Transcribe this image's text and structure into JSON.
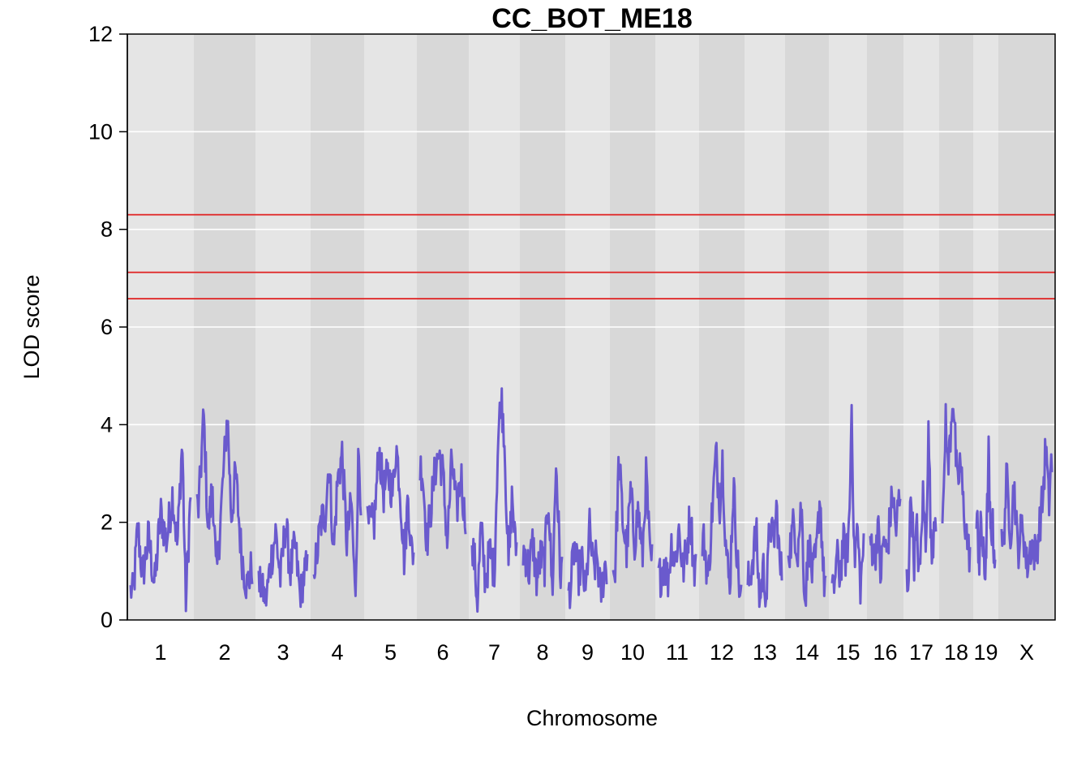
{
  "chart_data": {
    "type": "line",
    "title": "CC_BOT_ME18",
    "xlabel": "Chromosome",
    "ylabel": "LOD score",
    "ylim": [
      0,
      12
    ],
    "yticks": [
      0,
      2,
      4,
      6,
      8,
      10,
      12
    ],
    "grid": true,
    "line_color": "#6a5acd",
    "threshold_color": "#e02020",
    "thresholds": [
      8.3,
      7.12,
      6.58
    ],
    "chromosomes": [
      {
        "label": "1",
        "peaks": [
          [
            0.05,
            0.6
          ],
          [
            0.12,
            1.9
          ],
          [
            0.2,
            0.9
          ],
          [
            0.3,
            1.7
          ],
          [
            0.4,
            0.7
          ],
          [
            0.5,
            2.2
          ],
          [
            0.6,
            1.6
          ],
          [
            0.7,
            2.6
          ],
          [
            0.78,
            1.5
          ],
          [
            0.86,
            3.7
          ],
          [
            0.92,
            0.3
          ],
          [
            1.0,
            2.6
          ]
        ]
      },
      {
        "label": "2",
        "peaks": [
          [
            0.03,
            2.3
          ],
          [
            0.12,
            4.2
          ],
          [
            0.2,
            1.8
          ],
          [
            0.28,
            2.8
          ],
          [
            0.35,
            0.8
          ],
          [
            0.45,
            2.5
          ],
          [
            0.55,
            4.25
          ],
          [
            0.62,
            2.1
          ],
          [
            0.7,
            3.0
          ],
          [
            0.8,
            1.4
          ],
          [
            0.9,
            0.7
          ],
          [
            1.0,
            1.1
          ]
        ]
      },
      {
        "label": "3",
        "peaks": [
          [
            0.05,
            0.7
          ],
          [
            0.15,
            0.4
          ],
          [
            0.25,
            1.2
          ],
          [
            0.35,
            1.8
          ],
          [
            0.45,
            0.8
          ],
          [
            0.55,
            2.0
          ],
          [
            0.65,
            1.0
          ],
          [
            0.75,
            1.5
          ],
          [
            0.85,
            0.5
          ],
          [
            0.95,
            1.0
          ]
        ]
      },
      {
        "label": "4",
        "peaks": [
          [
            0.05,
            1.2
          ],
          [
            0.15,
            2.0
          ],
          [
            0.25,
            2.2
          ],
          [
            0.32,
            3.3
          ],
          [
            0.42,
            1.4
          ],
          [
            0.5,
            2.8
          ],
          [
            0.6,
            3.4
          ],
          [
            0.7,
            1.6
          ],
          [
            0.8,
            2.4
          ],
          [
            0.88,
            0.4
          ],
          [
            0.95,
            3.5
          ],
          [
            1.0,
            2.5
          ]
        ]
      },
      {
        "label": "5",
        "peaks": [
          [
            0.05,
            1.9
          ],
          [
            0.15,
            2.0
          ],
          [
            0.25,
            3.5
          ],
          [
            0.35,
            2.6
          ],
          [
            0.45,
            3.0
          ],
          [
            0.55,
            2.6
          ],
          [
            0.62,
            3.6
          ],
          [
            0.7,
            2.8
          ],
          [
            0.8,
            1.2
          ],
          [
            0.88,
            2.6
          ],
          [
            0.95,
            1.4
          ]
        ]
      },
      {
        "label": "6",
        "peaks": [
          [
            0.05,
            3.1
          ],
          [
            0.15,
            1.6
          ],
          [
            0.25,
            2.4
          ],
          [
            0.35,
            3.2
          ],
          [
            0.42,
            3.4
          ],
          [
            0.5,
            3.0
          ],
          [
            0.6,
            1.6
          ],
          [
            0.7,
            3.3
          ],
          [
            0.8,
            2.2
          ],
          [
            0.9,
            3.0
          ],
          [
            0.97,
            2.2
          ]
        ]
      },
      {
        "label": "7",
        "peaks": [
          [
            0.05,
            1.3
          ],
          [
            0.12,
            0.3
          ],
          [
            0.2,
            1.9
          ],
          [
            0.3,
            0.8
          ],
          [
            0.4,
            1.4
          ],
          [
            0.5,
            1.0
          ],
          [
            0.58,
            3.6
          ],
          [
            0.65,
            4.6
          ],
          [
            0.72,
            3.9
          ],
          [
            0.82,
            1.0
          ],
          [
            0.9,
            2.6
          ],
          [
            0.97,
            1.5
          ]
        ]
      },
      {
        "label": "8",
        "peaks": [
          [
            0.05,
            1.4
          ],
          [
            0.15,
            1.0
          ],
          [
            0.25,
            1.6
          ],
          [
            0.35,
            0.8
          ],
          [
            0.45,
            1.3
          ],
          [
            0.55,
            1.1
          ],
          [
            0.65,
            2.6
          ],
          [
            0.75,
            0.5
          ],
          [
            0.85,
            3.3
          ],
          [
            0.95,
            1.0
          ]
        ]
      },
      {
        "label": "9",
        "peaks": [
          [
            0.05,
            0.6
          ],
          [
            0.15,
            1.5
          ],
          [
            0.25,
            0.9
          ],
          [
            0.35,
            1.2
          ],
          [
            0.45,
            0.5
          ],
          [
            0.55,
            1.9
          ],
          [
            0.65,
            1.0
          ],
          [
            0.75,
            1.3
          ],
          [
            0.85,
            0.5
          ],
          [
            0.95,
            1.1
          ]
        ]
      },
      {
        "label": "10",
        "peaks": [
          [
            0.05,
            1.0
          ],
          [
            0.15,
            3.3
          ],
          [
            0.25,
            2.0
          ],
          [
            0.35,
            1.4
          ],
          [
            0.45,
            2.6
          ],
          [
            0.55,
            1.6
          ],
          [
            0.65,
            2.3
          ],
          [
            0.75,
            1.2
          ],
          [
            0.85,
            3.0
          ],
          [
            0.95,
            1.2
          ]
        ]
      },
      {
        "label": "11",
        "peaks": [
          [
            0.05,
            0.9
          ],
          [
            0.15,
            1.2
          ],
          [
            0.25,
            0.8
          ],
          [
            0.35,
            1.6
          ],
          [
            0.45,
            1.2
          ],
          [
            0.55,
            1.9
          ],
          [
            0.65,
            1.0
          ],
          [
            0.75,
            1.4
          ],
          [
            0.85,
            2.2
          ],
          [
            0.95,
            1.1
          ]
        ]
      },
      {
        "label": "12",
        "peaks": [
          [
            0.05,
            1.6
          ],
          [
            0.15,
            0.8
          ],
          [
            0.25,
            2.2
          ],
          [
            0.35,
            3.4
          ],
          [
            0.45,
            2.4
          ],
          [
            0.52,
            3.3
          ],
          [
            0.6,
            1.6
          ],
          [
            0.7,
            0.6
          ],
          [
            0.8,
            2.8
          ],
          [
            0.9,
            1.2
          ],
          [
            0.97,
            0.5
          ]
        ]
      },
      {
        "label": "13",
        "peaks": [
          [
            0.05,
            0.8
          ],
          [
            0.15,
            1.3
          ],
          [
            0.25,
            1.8
          ],
          [
            0.35,
            0.3
          ],
          [
            0.45,
            1.1
          ],
          [
            0.55,
            0.4
          ],
          [
            0.65,
            2.1
          ],
          [
            0.75,
            1.5
          ],
          [
            0.85,
            2.3
          ],
          [
            0.95,
            1.0
          ]
        ]
      },
      {
        "label": "14",
        "peaks": [
          [
            0.05,
            1.5
          ],
          [
            0.15,
            2.0
          ],
          [
            0.25,
            1.4
          ],
          [
            0.35,
            2.4
          ],
          [
            0.45,
            0.3
          ],
          [
            0.55,
            1.6
          ],
          [
            0.65,
            0.9
          ],
          [
            0.75,
            1.3
          ],
          [
            0.85,
            2.6
          ],
          [
            0.95,
            0.8
          ]
        ]
      },
      {
        "label": "15",
        "peaks": [
          [
            0.05,
            0.6
          ],
          [
            0.15,
            1.3
          ],
          [
            0.25,
            0.9
          ],
          [
            0.35,
            1.6
          ],
          [
            0.45,
            1.2
          ],
          [
            0.55,
            2.1
          ],
          [
            0.62,
            4.5
          ],
          [
            0.7,
            1.2
          ],
          [
            0.8,
            1.9
          ],
          [
            0.9,
            0.6
          ],
          [
            0.97,
            1.4
          ]
        ]
      },
      {
        "label": "16",
        "peaks": [
          [
            0.05,
            1.6
          ],
          [
            0.15,
            1.2
          ],
          [
            0.25,
            2.0
          ],
          [
            0.35,
            0.9
          ],
          [
            0.45,
            1.7
          ],
          [
            0.55,
            1.3
          ],
          [
            0.65,
            2.0
          ],
          [
            0.75,
            2.6
          ],
          [
            0.85,
            1.8
          ],
          [
            0.95,
            2.4
          ]
        ]
      },
      {
        "label": "17",
        "peaks": [
          [
            0.05,
            0.8
          ],
          [
            0.15,
            2.7
          ],
          [
            0.25,
            1.2
          ],
          [
            0.35,
            1.8
          ],
          [
            0.45,
            0.8
          ],
          [
            0.55,
            2.6
          ],
          [
            0.65,
            1.6
          ],
          [
            0.75,
            3.9
          ],
          [
            0.85,
            1.1
          ],
          [
            0.95,
            2.2
          ]
        ]
      },
      {
        "label": "18",
        "peaks": [
          [
            0.05,
            2.3
          ],
          [
            0.12,
            4.3
          ],
          [
            0.2,
            3.0
          ],
          [
            0.3,
            3.9
          ],
          [
            0.38,
            4.7
          ],
          [
            0.45,
            3.8
          ],
          [
            0.55,
            2.6
          ],
          [
            0.65,
            3.3
          ],
          [
            0.75,
            2.4
          ],
          [
            0.85,
            1.9
          ],
          [
            0.95,
            1.4
          ]
        ]
      },
      {
        "label": "19",
        "peaks": [
          [
            0.05,
            1.9
          ],
          [
            0.15,
            1.2
          ],
          [
            0.25,
            2.0
          ],
          [
            0.35,
            1.4
          ],
          [
            0.45,
            0.9
          ],
          [
            0.55,
            1.8
          ],
          [
            0.65,
            3.4
          ],
          [
            0.75,
            1.6
          ],
          [
            0.85,
            2.0
          ],
          [
            0.95,
            1.4
          ]
        ]
      },
      {
        "label": "X",
        "peaks": [
          [
            0.03,
            1.5
          ],
          [
            0.1,
            2.9
          ],
          [
            0.18,
            1.8
          ],
          [
            0.25,
            2.8
          ],
          [
            0.32,
            1.4
          ],
          [
            0.42,
            2.0
          ],
          [
            0.5,
            1.1
          ],
          [
            0.6,
            1.6
          ],
          [
            0.68,
            1.3
          ],
          [
            0.75,
            1.9
          ],
          [
            0.82,
            2.5
          ],
          [
            0.88,
            3.6
          ],
          [
            0.94,
            2.3
          ],
          [
            0.98,
            3.2
          ]
        ]
      }
    ]
  }
}
